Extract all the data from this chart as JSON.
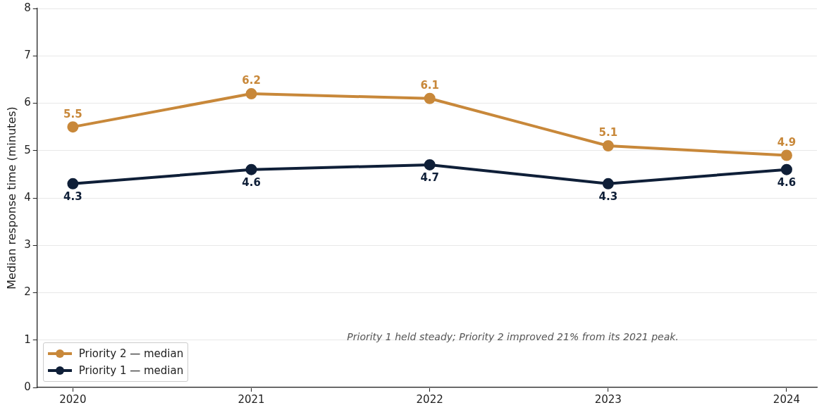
{
  "chart_data": {
    "type": "line",
    "ylabel": "Median response time (minutes)",
    "x": [
      2020,
      2021,
      2022,
      2023,
      2024
    ],
    "series": [
      {
        "name": "Priority 2 — median",
        "color": "#c8883a",
        "values": [
          5.5,
          6.2,
          6.1,
          5.1,
          4.9
        ]
      },
      {
        "name": "Priority 1 — median",
        "color": "#0f1f38",
        "values": [
          4.3,
          4.6,
          4.7,
          4.3,
          4.6
        ]
      }
    ],
    "xlim": [
      2019.8,
      2024.17
    ],
    "xticks": [
      2020,
      2021,
      2022,
      2023,
      2024
    ],
    "ylim": [
      0,
      8
    ],
    "yticks": [
      0,
      1,
      2,
      3,
      4,
      5,
      6,
      7,
      8
    ],
    "grid": "y",
    "legend": "bottom left",
    "marker": "circle",
    "line_style": "solid",
    "data_labels": true,
    "annotations": [
      "Priority 1 held steady; Priority 2 improved 21% from its 2021 peak."
    ]
  }
}
